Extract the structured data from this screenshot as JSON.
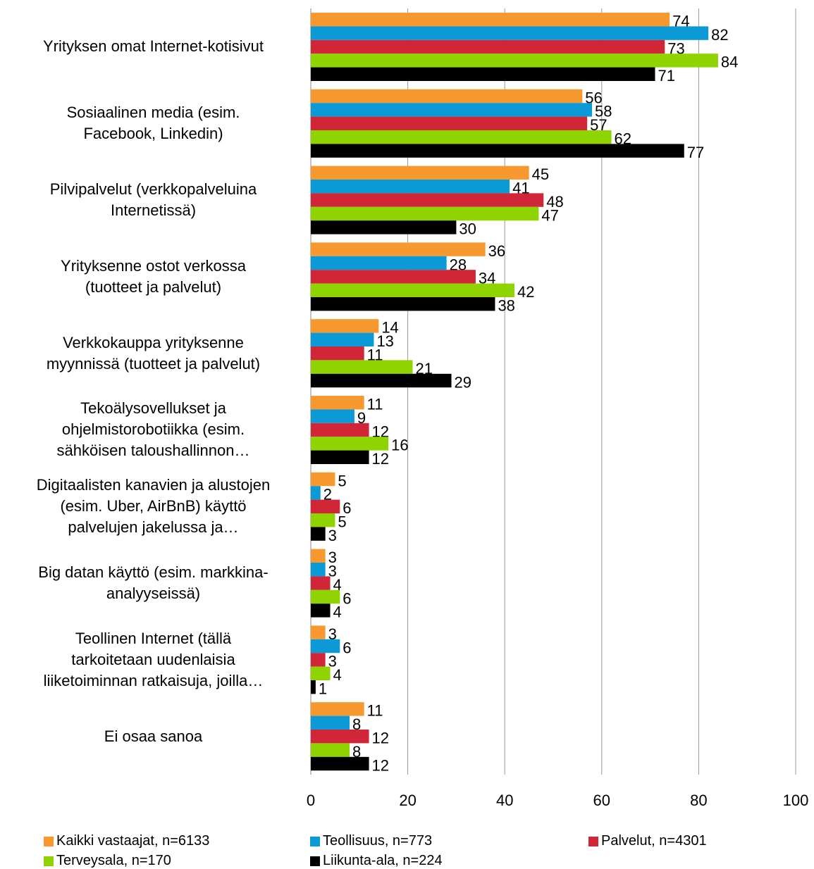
{
  "chart_data": {
    "type": "bar",
    "orientation": "horizontal",
    "categories": [
      "Yrityksen omat Internet-kotisivut",
      "Sosiaalinen media (esim.\nFacebook, Linkedin)",
      "Pilvipalvelut  (verkkopalveluina\nInternetissä)",
      "Yrityksenne ostot verkossa\n(tuotteet ja palvelut)",
      "Verkkokauppa yrityksenne\nmyynnissä (tuotteet ja palvelut)",
      "Tekoälysovellukset ja\nohjelmistorobotiikka (esim.\nsähköisen taloushallinnon…",
      "Digitaalisten kanavien ja alustojen\n(esim. Uber, AirBnB) käyttö\npalvelujen jakelussa ja…",
      "Big datan käyttö (esim. markkina-\nanalyyseissä)",
      "Teollinen Internet (tällä\ntarkoitetaan uudenlaisia\nliiketoiminnan ratkaisuja, joilla…",
      "Ei osaa sanoa"
    ],
    "series": [
      {
        "name": "Kaikki vastaajat, n=6133",
        "color": "#f7992e",
        "values": [
          74,
          56,
          45,
          36,
          14,
          11,
          5,
          3,
          3,
          11
        ]
      },
      {
        "name": "Teollisuus, n=773",
        "color": "#0c9ad7",
        "values": [
          82,
          58,
          41,
          28,
          13,
          9,
          2,
          3,
          6,
          8
        ]
      },
      {
        "name": "Palvelut, n=4301",
        "color": "#d02638",
        "values": [
          73,
          57,
          48,
          34,
          11,
          12,
          6,
          4,
          3,
          12
        ]
      },
      {
        "name": "Terveysala, n=170",
        "color": "#8fd400",
        "values": [
          84,
          62,
          47,
          42,
          21,
          16,
          5,
          6,
          4,
          8
        ]
      },
      {
        "name": "Liikunta-ala, n=224",
        "color": "#000000",
        "values": [
          71,
          77,
          30,
          38,
          29,
          12,
          3,
          4,
          1,
          12
        ]
      }
    ],
    "xlim": [
      0,
      100
    ],
    "xticks": [
      0,
      20,
      40,
      60,
      80,
      100
    ],
    "grid": true,
    "legend": "bottom"
  }
}
